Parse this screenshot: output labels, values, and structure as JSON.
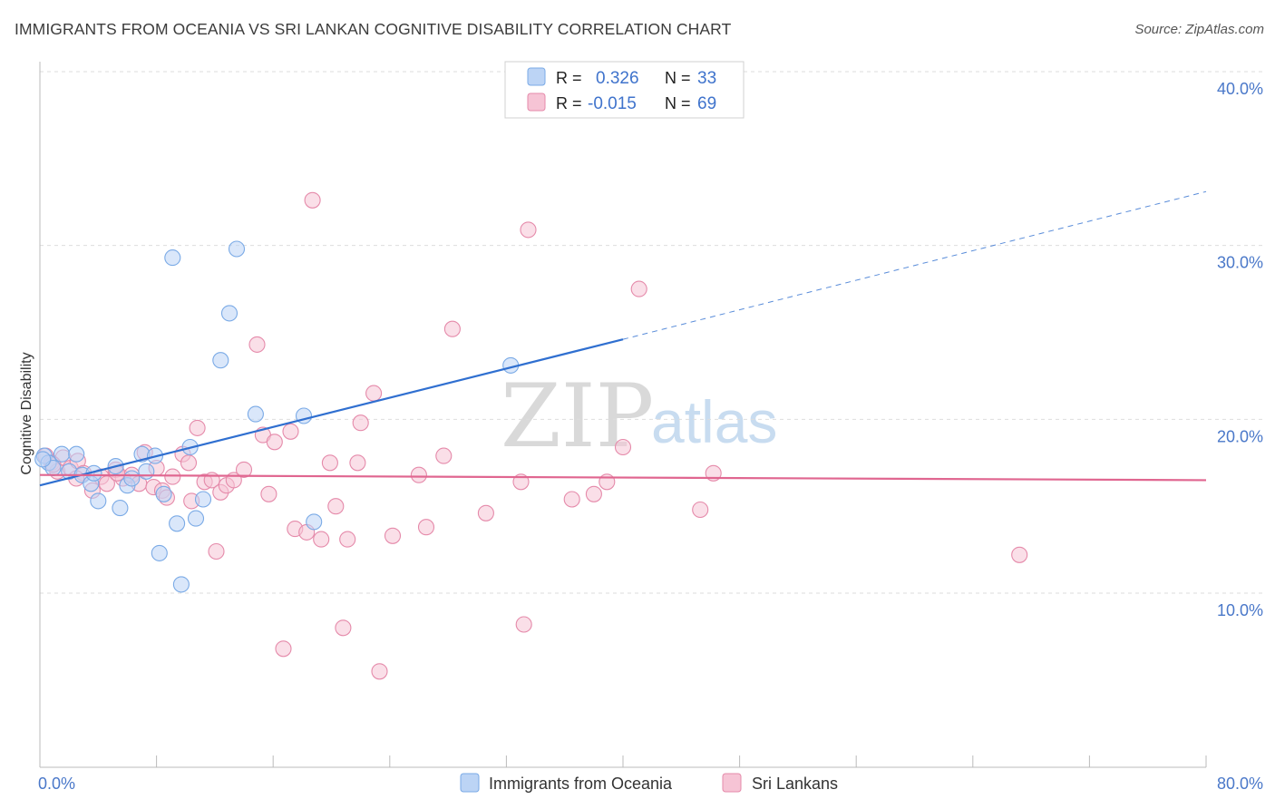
{
  "title": "IMMIGRANTS FROM OCEANIA VS SRI LANKAN COGNITIVE DISABILITY CORRELATION CHART",
  "source": "Source: ZipAtlas.com",
  "watermark": {
    "zip": "ZIP",
    "atlas": "atlas"
  },
  "colors": {
    "blue": "#7aaae6",
    "blue_fill": "#bcd4f5",
    "blue_line": "#2f6fd0",
    "pink": "#e58aaa",
    "pink_fill": "#f6c4d5",
    "pink_line": "#e06690",
    "grid": "#dddddd",
    "tick_text": "#4a78c9"
  },
  "legend_stats": {
    "blue": {
      "r_label": "R =",
      "r_value": "0.326",
      "n_label": "N =",
      "n_value": "33"
    },
    "pink": {
      "r_label": "R =",
      "r_value": "-0.015",
      "n_label": "N =",
      "n_value": "69"
    }
  },
  "chart_data": {
    "type": "scatter",
    "title": "IMMIGRANTS FROM OCEANIA VS SRI LANKAN COGNITIVE DISABILITY CORRELATION CHART",
    "xlabel": "",
    "ylabel": "Cognitive Disability",
    "xlim": [
      0,
      80
    ],
    "ylim": [
      0,
      42
    ],
    "x_tick_labels": [
      {
        "value": 0,
        "label": "0.0%"
      },
      {
        "value": 80,
        "label": "80.0%"
      }
    ],
    "y_tick_labels": [
      {
        "value": 10,
        "label": "10.0%"
      },
      {
        "value": 20,
        "label": "20.0%"
      },
      {
        "value": 30,
        "label": "30.0%"
      },
      {
        "value": 40,
        "label": "40.0%"
      }
    ],
    "legend_position": "bottom",
    "series": [
      {
        "name": "Immigrants from Oceania",
        "color": "blue",
        "trend": {
          "x0": 0,
          "y0": 16.2,
          "x1": 40,
          "y1": 24.6,
          "dashed_to_x": 80,
          "dashed_to_y": 33.1
        },
        "points": [
          [
            0.3,
            17.9
          ],
          [
            0.6,
            17.5
          ],
          [
            0.9,
            17.2
          ],
          [
            1.5,
            18.0
          ],
          [
            2.0,
            17.0
          ],
          [
            2.5,
            18.0
          ],
          [
            2.9,
            16.8
          ],
          [
            3.5,
            16.3
          ],
          [
            3.7,
            16.9
          ],
          [
            4.0,
            15.3
          ],
          [
            5.2,
            17.3
          ],
          [
            5.5,
            14.9
          ],
          [
            6.0,
            16.2
          ],
          [
            6.3,
            16.6
          ],
          [
            7.0,
            18.0
          ],
          [
            7.3,
            17.0
          ],
          [
            7.9,
            17.9
          ],
          [
            8.2,
            12.3
          ],
          [
            8.5,
            15.7
          ],
          [
            9.1,
            29.3
          ],
          [
            9.4,
            14.0
          ],
          [
            9.7,
            10.5
          ],
          [
            10.3,
            18.4
          ],
          [
            10.7,
            14.3
          ],
          [
            11.2,
            15.4
          ],
          [
            12.4,
            23.4
          ],
          [
            13.0,
            26.1
          ],
          [
            13.5,
            29.8
          ],
          [
            14.8,
            20.3
          ],
          [
            18.1,
            20.2
          ],
          [
            18.8,
            14.1
          ],
          [
            32.3,
            23.1
          ],
          [
            0.2,
            17.7
          ]
        ]
      },
      {
        "name": "Sri Lankans",
        "color": "pink",
        "trend": {
          "x0": 0,
          "y0": 16.8,
          "x1": 80,
          "y1": 16.5
        },
        "points": [
          [
            0.4,
            17.9
          ],
          [
            0.8,
            17.5
          ],
          [
            1.2,
            17.0
          ],
          [
            1.6,
            17.8
          ],
          [
            2.1,
            17.2
          ],
          [
            2.6,
            17.6
          ],
          [
            3.0,
            16.9
          ],
          [
            3.6,
            15.9
          ],
          [
            4.2,
            16.7
          ],
          [
            4.6,
            16.3
          ],
          [
            5.2,
            17.1
          ],
          [
            5.7,
            16.6
          ],
          [
            6.3,
            16.8
          ],
          [
            6.8,
            16.3
          ],
          [
            7.2,
            18.1
          ],
          [
            7.8,
            16.1
          ],
          [
            8.0,
            17.2
          ],
          [
            8.4,
            15.9
          ],
          [
            8.7,
            15.5
          ],
          [
            9.1,
            16.7
          ],
          [
            9.8,
            18.0
          ],
          [
            10.2,
            17.5
          ],
          [
            10.4,
            15.3
          ],
          [
            10.8,
            19.5
          ],
          [
            11.3,
            16.4
          ],
          [
            11.8,
            16.5
          ],
          [
            12.1,
            12.4
          ],
          [
            12.4,
            15.8
          ],
          [
            12.8,
            16.2
          ],
          [
            13.3,
            16.5
          ],
          [
            14.0,
            17.1
          ],
          [
            14.9,
            24.3
          ],
          [
            15.3,
            19.1
          ],
          [
            15.7,
            15.7
          ],
          [
            16.1,
            18.7
          ],
          [
            16.7,
            6.8
          ],
          [
            17.2,
            19.3
          ],
          [
            17.5,
            13.7
          ],
          [
            18.3,
            13.5
          ],
          [
            18.7,
            32.6
          ],
          [
            19.3,
            13.1
          ],
          [
            19.9,
            17.5
          ],
          [
            20.3,
            15.0
          ],
          [
            20.8,
            8.0
          ],
          [
            21.1,
            13.1
          ],
          [
            21.8,
            17.5
          ],
          [
            22.0,
            19.8
          ],
          [
            22.9,
            21.5
          ],
          [
            23.3,
            5.5
          ],
          [
            24.2,
            13.3
          ],
          [
            26.0,
            16.8
          ],
          [
            26.5,
            13.8
          ],
          [
            27.7,
            17.9
          ],
          [
            28.3,
            25.2
          ],
          [
            30.6,
            14.6
          ],
          [
            33.0,
            16.4
          ],
          [
            33.2,
            8.2
          ],
          [
            33.5,
            30.9
          ],
          [
            36.5,
            15.4
          ],
          [
            38.0,
            15.7
          ],
          [
            38.9,
            16.4
          ],
          [
            40.0,
            18.4
          ],
          [
            41.1,
            27.5
          ],
          [
            45.3,
            14.8
          ],
          [
            46.2,
            16.9
          ],
          [
            67.2,
            12.2
          ],
          [
            0.9,
            17.4
          ],
          [
            5.3,
            16.9
          ],
          [
            2.5,
            16.6
          ]
        ]
      }
    ]
  },
  "bottom_legend": {
    "blue_label": "Immigrants from Oceania",
    "pink_label": "Sri Lankans"
  }
}
